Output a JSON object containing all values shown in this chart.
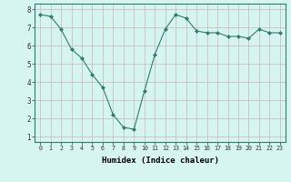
{
  "x": [
    0,
    1,
    2,
    3,
    4,
    5,
    6,
    7,
    8,
    9,
    10,
    11,
    12,
    13,
    14,
    15,
    16,
    17,
    18,
    19,
    20,
    21,
    22,
    23
  ],
  "y": [
    7.7,
    7.6,
    6.9,
    5.8,
    5.3,
    4.4,
    3.7,
    2.2,
    1.5,
    1.4,
    3.5,
    5.5,
    6.9,
    7.7,
    7.5,
    6.8,
    6.7,
    6.7,
    6.5,
    6.5,
    6.4,
    6.9,
    6.7,
    6.7
  ],
  "line_color": "#2e7d6e",
  "marker": "D",
  "marker_size": 2.0,
  "bg_color": "#d6f5f0",
  "grid_color": "#c8b8b8",
  "xlabel": "Humidex (Indice chaleur)",
  "xlabel_fontsize": 6.5,
  "ytick_labels": [
    "1",
    "2",
    "3",
    "4",
    "5",
    "6",
    "7",
    "8"
  ],
  "yticks": [
    1,
    2,
    3,
    4,
    5,
    6,
    7,
    8
  ],
  "xticks": [
    0,
    1,
    2,
    3,
    4,
    5,
    6,
    7,
    8,
    9,
    10,
    11,
    12,
    13,
    14,
    15,
    16,
    17,
    18,
    19,
    20,
    21,
    22,
    23
  ],
  "ylim": [
    0.7,
    8.3
  ],
  "xlim": [
    -0.5,
    23.5
  ]
}
